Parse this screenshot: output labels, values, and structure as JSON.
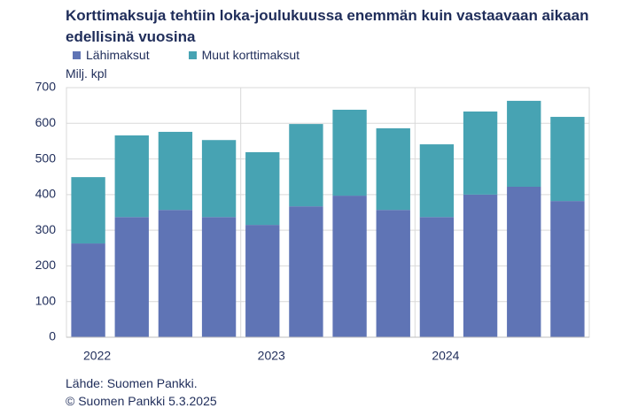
{
  "chart_data": {
    "type": "stacked_bar",
    "title": "Korttimaksuja tehtiin loka-joulukuussa enemmän kuin vastaavaan aikaan edellisinä vuosina",
    "y_label": "Milj. kpl",
    "categories": [
      "2022",
      null,
      null,
      null,
      "2023",
      null,
      null,
      null,
      "2024",
      null,
      null,
      null
    ],
    "series": [
      {
        "name": "Lähimaksut",
        "color": "#5f74b5",
        "values": [
          263,
          337,
          357,
          337,
          315,
          367,
          397,
          357,
          337,
          400,
          422,
          382
        ]
      },
      {
        "name": "Muut korttimaksut",
        "color": "#47a3b3",
        "values": [
          186,
          229,
          219,
          216,
          204,
          231,
          241,
          229,
          204,
          233,
          241,
          236
        ]
      }
    ],
    "ylim": [
      0,
      700
    ],
    "yticks": [
      0,
      100,
      200,
      300,
      400,
      500,
      600,
      700
    ],
    "grid": true,
    "source": "Lähde: Suomen Pankki.",
    "copyright": "© Suomen Pankki 5.3.2025"
  }
}
